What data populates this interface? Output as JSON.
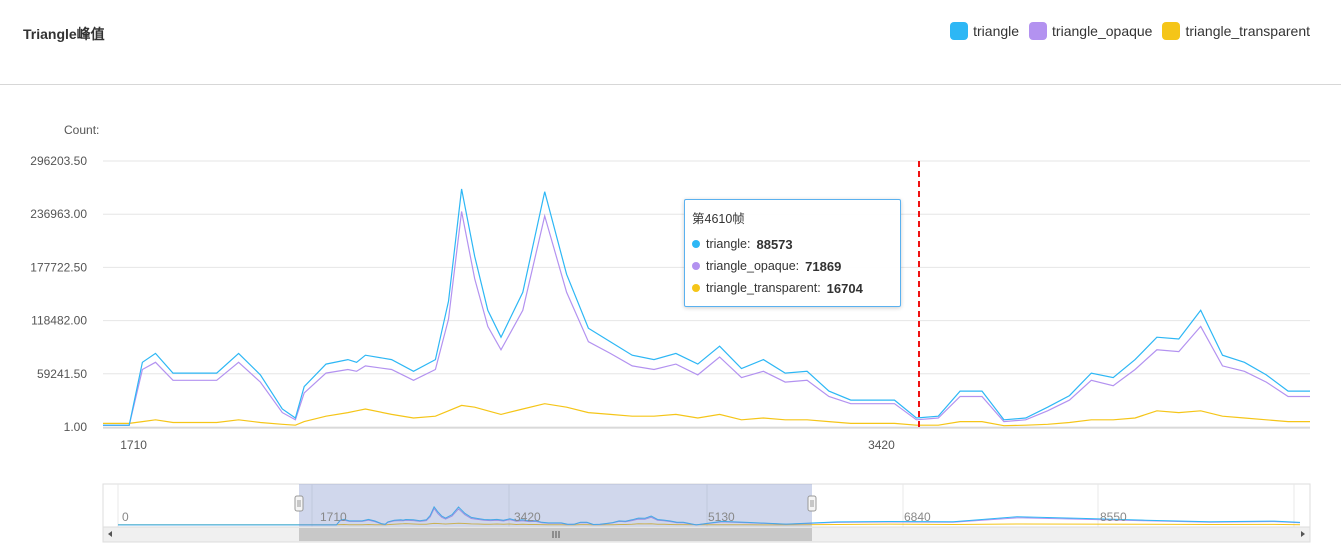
{
  "title": "Triangle峰值",
  "legend": [
    {
      "name": "triangle",
      "color": "#2db7f5"
    },
    {
      "name": "triangle_opaque",
      "color": "#b392f0"
    },
    {
      "name": "triangle_transparent",
      "color": "#f5c518"
    }
  ],
  "y_unit_label": "Count:",
  "tooltip": {
    "title": "第4610帧",
    "rows": [
      {
        "name": "triangle",
        "value": "88573"
      },
      {
        "name": "triangle_opaque",
        "value": "71869"
      },
      {
        "name": "triangle_transparent",
        "value": "16704"
      }
    ]
  },
  "zoom": {
    "start_label": "0",
    "tick_labels": [
      "1710",
      "3420",
      "5130",
      "6840",
      "8550"
    ],
    "selected_range": [
      1640,
      4400
    ]
  },
  "chart_data": {
    "type": "line",
    "title": "Triangle峰值",
    "ylabel": "Count:",
    "y_ticks": [
      "1.00",
      "59241.50",
      "118482.00",
      "177722.50",
      "236963.00",
      "296203.50"
    ],
    "y_tick_values": [
      1,
      59241.5,
      118482,
      177722.5,
      236963,
      296203.5
    ],
    "x_ticks": [
      "1710",
      "3420",
      "5130"
    ],
    "x_tick_values": [
      1710,
      3420,
      5130
    ],
    "xlim": [
      1640,
      4400
    ],
    "ylim": [
      1,
      296203.5
    ],
    "grid": true,
    "marker_x": 4610,
    "x": [
      1640,
      1700,
      1730,
      1760,
      1800,
      1850,
      1900,
      1950,
      2000,
      2050,
      2080,
      2100,
      2150,
      2200,
      2220,
      2240,
      2300,
      2350,
      2400,
      2430,
      2460,
      2490,
      2520,
      2550,
      2600,
      2650,
      2700,
      2750,
      2800,
      2850,
      2900,
      2950,
      3000,
      3050,
      3100,
      3150,
      3200,
      3250,
      3300,
      3350,
      3400,
      3450,
      3500,
      3550,
      3600,
      3650,
      3700,
      3750,
      3800,
      3850,
      3900,
      3950,
      4000,
      4050,
      4100,
      4150,
      4200,
      4250,
      4300,
      4350,
      4400
    ],
    "series": [
      {
        "name": "triangle",
        "values": [
          2000,
          2000,
          72000,
          82000,
          60000,
          60000,
          60000,
          82000,
          58000,
          20000,
          10000,
          45000,
          70000,
          75000,
          72000,
          80000,
          75000,
          62000,
          75000,
          140000,
          265000,
          190000,
          130000,
          100000,
          150000,
          262000,
          170000,
          110000,
          95000,
          80000,
          75000,
          82000,
          70000,
          90000,
          65000,
          75000,
          60000,
          62000,
          40000,
          30000,
          30000,
          30000,
          10000,
          12000,
          40000,
          40000,
          8000,
          10000,
          22000,
          35000,
          60000,
          55000,
          75000,
          100000,
          98000,
          130000,
          80000,
          72000,
          58000,
          40000,
          40000
        ]
      },
      {
        "name": "triangle_opaque",
        "values": [
          1800,
          1800,
          64000,
          72000,
          52000,
          52000,
          52000,
          72000,
          50000,
          16000,
          8000,
          38000,
          60000,
          64000,
          62000,
          68000,
          64000,
          52000,
          64000,
          120000,
          240000,
          165000,
          112000,
          86000,
          130000,
          235000,
          150000,
          95000,
          82000,
          68000,
          64000,
          70000,
          58000,
          78000,
          55000,
          62000,
          50000,
          52000,
          34000,
          26000,
          26000,
          26000,
          8000,
          10000,
          34000,
          34000,
          6000,
          8000,
          18000,
          30000,
          52000,
          46000,
          64000,
          86000,
          84000,
          112000,
          68000,
          62000,
          50000,
          34000,
          34000
        ]
      },
      {
        "name": "triangle_transparent",
        "values": [
          4000,
          4000,
          6000,
          8000,
          5000,
          5000,
          5000,
          8000,
          5000,
          3000,
          2000,
          6000,
          12000,
          16000,
          18000,
          20000,
          14000,
          10000,
          12000,
          18000,
          24000,
          22000,
          18000,
          14000,
          20000,
          26000,
          22000,
          16000,
          14000,
          12000,
          12000,
          14000,
          10000,
          14000,
          8000,
          10000,
          8000,
          8000,
          6000,
          4000,
          4000,
          4000,
          2000,
          2000,
          6000,
          6000,
          1500,
          2000,
          3000,
          5000,
          8000,
          8000,
          10000,
          18000,
          16000,
          18000,
          12000,
          10000,
          8000,
          6000,
          6000
        ]
      }
    ]
  }
}
